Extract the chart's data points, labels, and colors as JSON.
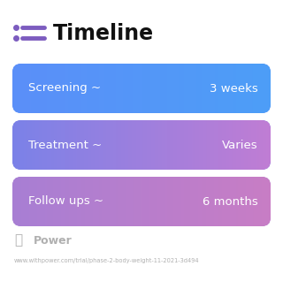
{
  "title": "Timeline",
  "title_icon_color": "#7c5cbf",
  "title_icon_blue": "#4d8ef5",
  "background_color": "#ffffff",
  "rows": [
    {
      "label": "Screening ~",
      "value": "3 weeks",
      "color_left": "#5b8ff9",
      "color_right": "#4d9ef7"
    },
    {
      "label": "Treatment ~",
      "value": "Varies",
      "color_left": "#7b82e8",
      "color_right": "#c07dd4"
    },
    {
      "label": "Follow ups ~",
      "value": "6 months",
      "color_left": "#a87fd4",
      "color_right": "#c87dc5"
    }
  ],
  "watermark_text": "Power",
  "watermark_color": "#b0b0b0",
  "url_text": "www.withpower.com/trial/phase-2-body-weight-11-2021-3d494",
  "url_color": "#b0b0b0",
  "text_color": "#ffffff",
  "font_size_label": 9.5,
  "font_size_value": 9.5,
  "font_size_title": 17,
  "font_size_watermark": 9,
  "font_size_url": 4.8
}
